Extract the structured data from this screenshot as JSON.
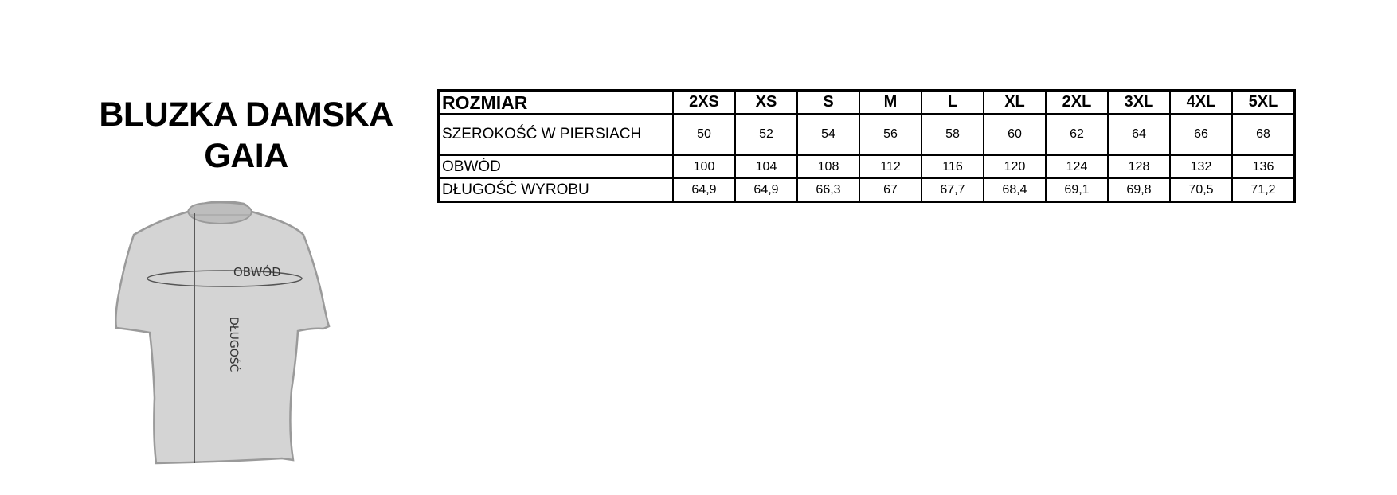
{
  "title": {
    "line1": "BLUZKA DAMSKA",
    "line2": "GAIA"
  },
  "diagram": {
    "circumference_label": "OBWÓD",
    "length_label": "DŁUGOŚĆ",
    "shirt_color": "#d4d4d4"
  },
  "table": {
    "header": {
      "label": "ROZMIAR",
      "sizes": [
        "2XS",
        "XS",
        "S",
        "M",
        "L",
        "XL",
        "2XL",
        "3XL",
        "4XL",
        "5XL"
      ]
    },
    "rows": [
      {
        "label": "SZEROKOŚĆ W PIERSIACH",
        "values": [
          "50",
          "52",
          "54",
          "56",
          "58",
          "60",
          "62",
          "64",
          "66",
          "68"
        ]
      },
      {
        "label": "OBWÓD",
        "values": [
          "100",
          "104",
          "108",
          "112",
          "116",
          "120",
          "124",
          "128",
          "132",
          "136"
        ]
      },
      {
        "label": "DŁUGOŚĆ WYROBU",
        "values": [
          "64,9",
          "64,9",
          "66,3",
          "67",
          "67,7",
          "68,4",
          "69,1",
          "69,8",
          "70,5",
          "71,2"
        ]
      }
    ]
  }
}
